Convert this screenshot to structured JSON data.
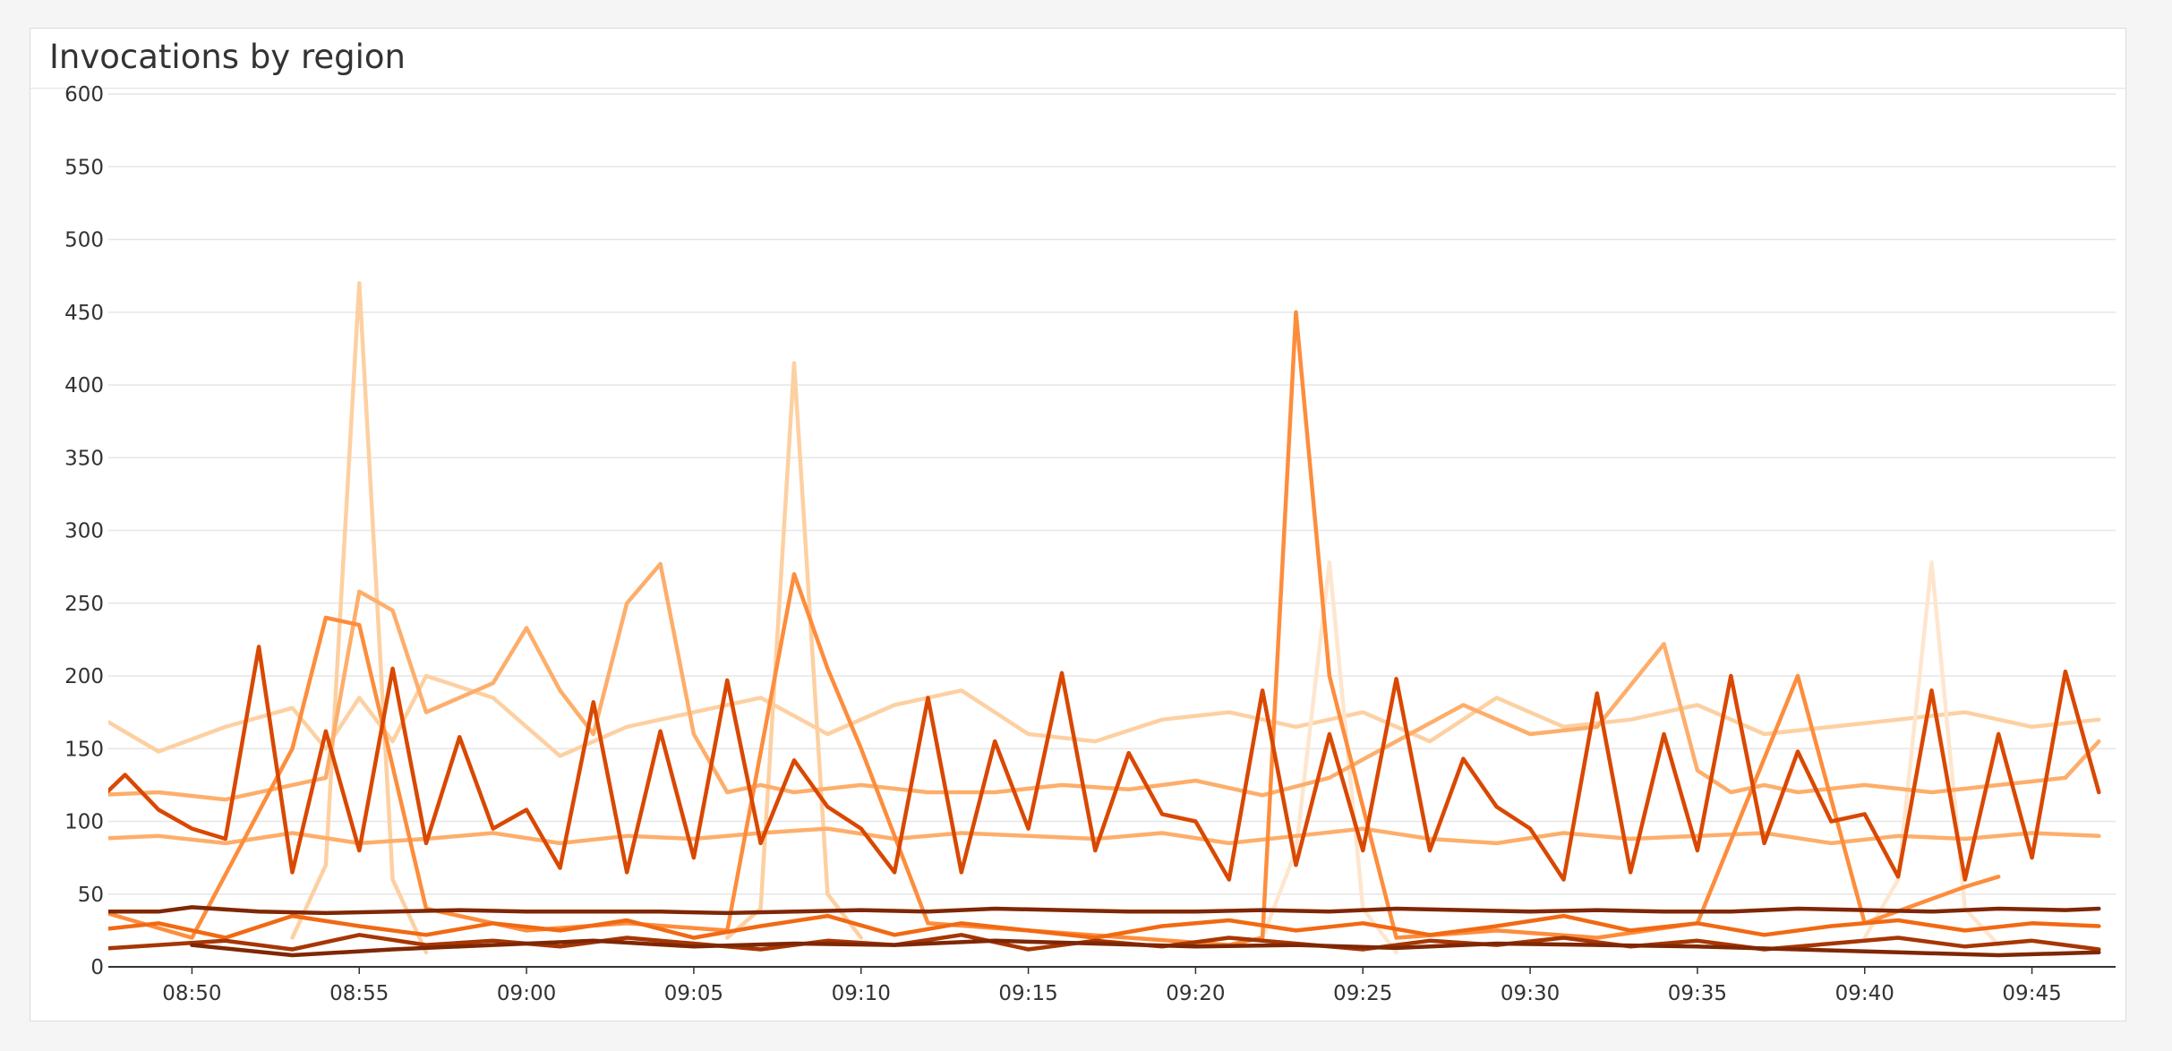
{
  "panel": {
    "title": "Invocations by region"
  },
  "chart_data": {
    "type": "line",
    "title": "Invocations by region",
    "xlabel": "",
    "ylabel": "",
    "x_ticks": [
      "08:50",
      "08:55",
      "09:00",
      "09:05",
      "09:10",
      "09:15",
      "09:20",
      "09:25",
      "09:30",
      "09:35",
      "09:40",
      "09:45"
    ],
    "y_ticks": [
      0,
      50,
      100,
      150,
      200,
      250,
      300,
      350,
      400,
      450,
      500,
      550,
      600
    ],
    "xlim": [
      "08:47:30",
      "09:47:30"
    ],
    "ylim": [
      0,
      600
    ],
    "grid": true,
    "legend": "none",
    "colors": {
      "grid": "#e6e6e6",
      "axis": "#333333",
      "tick_text": "#333333",
      "palette": [
        "#7f2704",
        "#a63603",
        "#d94801",
        "#f16913",
        "#fd8d3c",
        "#fdae6b",
        "#fdd0a2",
        "#fee6ce"
      ]
    },
    "series": [
      {
        "color": "#fdd0a2",
        "x": [
          "08:47",
          "08:49",
          "08:51",
          "08:53",
          "08:54",
          "08:55",
          "08:56",
          "08:57",
          "08:59",
          "09:01",
          "09:03",
          "09:05",
          "09:07",
          "09:09",
          "09:11",
          "09:13",
          "09:15",
          "09:17",
          "09:19",
          "09:21",
          "09:23",
          "09:25",
          "09:27",
          "09:29",
          "09:31",
          "09:33",
          "09:35",
          "09:37",
          "09:39",
          "09:41",
          "09:43",
          "09:45",
          "09:47"
        ],
        "y": [
          175,
          148,
          165,
          178,
          150,
          185,
          155,
          200,
          185,
          145,
          165,
          175,
          185,
          160,
          180,
          190,
          160,
          155,
          170,
          175,
          165,
          175,
          155,
          185,
          165,
          170,
          180,
          160,
          165,
          170,
          175,
          165,
          170
        ]
      },
      {
        "color": "#fdd0a2",
        "x": [
          "08:53",
          "08:54",
          "08:55",
          "08:56",
          "08:57"
        ],
        "y": [
          20,
          70,
          470,
          60,
          10
        ]
      },
      {
        "color": "#fdd0a2",
        "x": [
          "09:06",
          "09:07",
          "09:08",
          "09:09",
          "09:10"
        ],
        "y": [
          20,
          40,
          415,
          50,
          20
        ]
      },
      {
        "color": "#fee6ce",
        "x": [
          "09:22",
          "09:23",
          "09:24",
          "09:25",
          "09:26"
        ],
        "y": [
          20,
          80,
          278,
          40,
          10
        ]
      },
      {
        "color": "#fee6ce",
        "x": [
          "09:40",
          "09:41",
          "09:42",
          "09:43",
          "09:44"
        ],
        "y": [
          20,
          60,
          278,
          40,
          15
        ]
      },
      {
        "color": "#fdae6b",
        "x": [
          "08:47",
          "08:49",
          "08:51",
          "08:53",
          "08:54",
          "08:55",
          "08:56",
          "08:57",
          "08:59",
          "09:00",
          "09:01",
          "09:02",
          "09:03",
          "09:04",
          "09:05",
          "09:06",
          "09:07",
          "09:08",
          "09:10",
          "09:12",
          "09:14",
          "09:16",
          "09:18",
          "09:20",
          "09:22",
          "09:24",
          "09:26",
          "09:28",
          "09:30",
          "09:32",
          "09:34",
          "09:35",
          "09:36",
          "09:37",
          "09:38",
          "09:40",
          "09:42",
          "09:44",
          "09:46",
          "09:47"
        ],
        "y": [
          118,
          120,
          115,
          125,
          130,
          258,
          245,
          175,
          195,
          233,
          190,
          160,
          250,
          277,
          160,
          120,
          125,
          120,
          125,
          120,
          120,
          125,
          122,
          128,
          118,
          130,
          155,
          180,
          160,
          165,
          222,
          135,
          120,
          125,
          120,
          125,
          120,
          125,
          130,
          155
        ]
      },
      {
        "color": "#fdae6b",
        "x": [
          "08:47",
          "08:49",
          "08:51",
          "08:53",
          "08:55",
          "08:57",
          "08:59",
          "09:01",
          "09:03",
          "09:05",
          "09:07",
          "09:09",
          "09:11",
          "09:13",
          "09:15",
          "09:17",
          "09:19",
          "09:21",
          "09:23",
          "09:25",
          "09:27",
          "09:29",
          "09:31",
          "09:33",
          "09:35",
          "09:37",
          "09:39",
          "09:41",
          "09:43",
          "09:45",
          "09:47"
        ],
        "y": [
          88,
          90,
          85,
          92,
          85,
          88,
          92,
          85,
          90,
          88,
          92,
          95,
          88,
          92,
          90,
          88,
          92,
          85,
          90,
          95,
          88,
          85,
          92,
          88,
          90,
          92,
          85,
          90,
          88,
          92,
          90
        ]
      },
      {
        "color": "#fd8d3c",
        "x": [
          "08:47",
          "08:50",
          "08:53",
          "08:54",
          "08:55",
          "08:57",
          "09:00",
          "09:03",
          "09:06",
          "09:08",
          "09:09",
          "09:10",
          "09:12",
          "09:15",
          "09:18",
          "09:21",
          "09:22",
          "09:23",
          "09:24",
          "09:26",
          "09:29",
          "09:32",
          "09:35",
          "09:38",
          "09:40",
          "09:43",
          "09:44"
        ],
        "y": [
          40,
          20,
          150,
          240,
          235,
          40,
          25,
          30,
          25,
          270,
          205,
          150,
          30,
          25,
          20,
          15,
          20,
          450,
          200,
          20,
          25,
          20,
          30,
          200,
          30,
          55,
          62
        ]
      },
      {
        "color": "#f16913",
        "x": [
          "08:47",
          "08:49",
          "08:51",
          "08:53",
          "08:55",
          "08:57",
          "08:59",
          "09:01",
          "09:03",
          "09:05",
          "09:07",
          "09:09",
          "09:11",
          "09:13",
          "09:15",
          "09:17",
          "09:19",
          "09:21",
          "09:23",
          "09:25",
          "09:27",
          "09:29",
          "09:31",
          "09:33",
          "09:35",
          "09:37",
          "09:39",
          "09:41",
          "09:43",
          "09:45",
          "09:47"
        ],
        "y": [
          25,
          30,
          20,
          35,
          28,
          22,
          30,
          25,
          32,
          20,
          28,
          35,
          22,
          30,
          25,
          20,
          28,
          32,
          25,
          30,
          22,
          28,
          35,
          25,
          30,
          22,
          28,
          32,
          25,
          30,
          28
        ]
      },
      {
        "color": "#d94801",
        "x": [
          "08:47",
          "08:48",
          "08:49",
          "08:50",
          "08:51",
          "08:52",
          "08:53",
          "08:54",
          "08:55",
          "08:56",
          "08:57",
          "08:58",
          "08:59",
          "09:00",
          "09:01",
          "09:02",
          "09:03",
          "09:04",
          "09:05",
          "09:06",
          "09:07",
          "09:08",
          "09:09",
          "09:10",
          "09:11",
          "09:12",
          "09:13",
          "09:14",
          "09:15",
          "09:16",
          "09:17",
          "09:18",
          "09:19",
          "09:20",
          "09:21",
          "09:22",
          "09:23",
          "09:24",
          "09:25",
          "09:26",
          "09:27",
          "09:28",
          "09:29",
          "09:30",
          "09:31",
          "09:32",
          "09:33",
          "09:34",
          "09:35",
          "09:36",
          "09:37",
          "09:38",
          "09:39",
          "09:40",
          "09:41",
          "09:42",
          "09:43",
          "09:44",
          "09:45",
          "09:46",
          "09:47"
        ],
        "y": [
          110,
          132,
          108,
          95,
          88,
          220,
          65,
          162,
          80,
          205,
          85,
          158,
          95,
          108,
          68,
          182,
          65,
          162,
          75,
          197,
          85,
          142,
          110,
          95,
          65,
          185,
          65,
          155,
          95,
          202,
          80,
          147,
          105,
          100,
          60,
          190,
          70,
          160,
          80,
          198,
          80,
          143,
          110,
          95,
          60,
          188,
          65,
          160,
          80,
          200,
          85,
          148,
          100,
          105,
          62,
          190,
          60,
          160,
          75,
          203,
          120
        ]
      },
      {
        "color": "#a63603",
        "x": [
          "08:47",
          "08:49",
          "08:51",
          "08:53",
          "08:55",
          "08:57",
          "08:59",
          "09:01",
          "09:03",
          "09:05",
          "09:07",
          "09:09",
          "09:11",
          "09:13",
          "09:15",
          "09:17",
          "09:19",
          "09:21",
          "09:23",
          "09:25",
          "09:27",
          "09:29",
          "09:31",
          "09:33",
          "09:35",
          "09:37",
          "09:39",
          "09:41",
          "09:43",
          "09:45",
          "09:47"
        ],
        "y": [
          12,
          15,
          18,
          12,
          22,
          15,
          18,
          14,
          20,
          16,
          12,
          18,
          15,
          22,
          12,
          18,
          14,
          20,
          16,
          12,
          18,
          15,
          20,
          14,
          18,
          12,
          16,
          20,
          14,
          18,
          12
        ]
      },
      {
        "color": "#7f2704",
        "x": [
          "08:47",
          "08:49",
          "08:50",
          "08:52",
          "08:54",
          "08:56",
          "08:58",
          "09:00",
          "09:02",
          "09:04",
          "09:06",
          "09:08",
          "09:10",
          "09:12",
          "09:14",
          "09:16",
          "09:18",
          "09:20",
          "09:22",
          "09:24",
          "09:26",
          "09:28",
          "09:30",
          "09:32",
          "09:34",
          "09:36",
          "09:38",
          "09:40",
          "09:42",
          "09:44",
          "09:46",
          "09:47"
        ],
        "y": [
          38,
          38,
          41,
          38,
          37,
          38,
          39,
          38,
          38,
          38,
          37,
          38,
          39,
          38,
          40,
          39,
          38,
          38,
          39,
          38,
          40,
          39,
          38,
          39,
          38,
          38,
          40,
          39,
          38,
          40,
          39,
          40
        ]
      },
      {
        "color": "#7f2704",
        "x": [
          "08:50",
          "08:53",
          "08:56",
          "08:59",
          "09:02",
          "09:05",
          "09:08",
          "09:11",
          "09:14",
          "09:17",
          "09:20",
          "09:23",
          "09:26",
          "09:29",
          "09:32",
          "09:35",
          "09:38",
          "09:41",
          "09:44",
          "09:47"
        ],
        "y": [
          15,
          8,
          12,
          15,
          18,
          14,
          16,
          15,
          18,
          16,
          14,
          15,
          13,
          16,
          15,
          14,
          12,
          10,
          8,
          10
        ]
      }
    ]
  }
}
